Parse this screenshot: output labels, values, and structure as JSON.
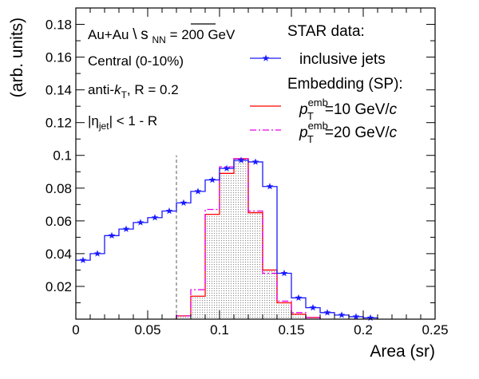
{
  "chart_data": {
    "type": "line",
    "title": "",
    "xlabel": "Area (sr)",
    "ylabel": "(arb. units)",
    "xlim": [
      0,
      0.25
    ],
    "ylim": [
      0,
      0.19
    ],
    "x_ticks": [
      "0",
      "0.05",
      "0.1",
      "0.15",
      "0.2",
      "0.25"
    ],
    "y_ticks": [
      "0.02",
      "0.04",
      "0.06",
      "0.08",
      "0.1",
      "0.12",
      "0.14",
      "0.16",
      "0.18"
    ],
    "annotations": {
      "system_prefix": "Au+Au ",
      "system_sub": "NN",
      "system_suffix": " = 200 GeV",
      "centrality": "Central (0-10%)",
      "algo_prefix": "anti-",
      "algo_k": "k",
      "algo_sub": "T",
      "algo_suffix": ", R = 0.2",
      "eta_sub": "jet",
      "eta_suffix": "| < 1 - R"
    },
    "legend": {
      "header1": "STAR data:",
      "header2": "Embedding (SP):",
      "series_label_prefix": "p",
      "series_label_sup": "emb",
      "series_label_sub": "T",
      "series_label_unit": " GeV/",
      "series_label_c": "c"
    },
    "cut_line_x": 0.07,
    "bin_width": 0.01,
    "series": [
      {
        "name": "inclusive jets",
        "color": "#1a1aff",
        "style": "solid-step-with-stars",
        "x": [
          0.005,
          0.015,
          0.025,
          0.035,
          0.045,
          0.055,
          0.065,
          0.075,
          0.085,
          0.095,
          0.105,
          0.115,
          0.125,
          0.135,
          0.145,
          0.155,
          0.165,
          0.175,
          0.185,
          0.195,
          0.205
        ],
        "values": [
          0.036,
          0.04,
          0.051,
          0.055,
          0.059,
          0.062,
          0.066,
          0.071,
          0.078,
          0.085,
          0.092,
          0.097,
          0.096,
          0.081,
          0.028,
          0.013,
          0.007,
          0.004,
          0.0025,
          0.0015,
          0.0008
        ]
      },
      {
        "name": "10",
        "color": "#ff0000",
        "style": "solid-step-filled",
        "x": [
          0.075,
          0.085,
          0.095,
          0.105,
          0.115,
          0.125,
          0.135,
          0.145,
          0.155,
          0.165
        ],
        "values": [
          0.002,
          0.014,
          0.064,
          0.089,
          0.098,
          0.065,
          0.03,
          0.01,
          0.003,
          0.001
        ]
      },
      {
        "name": "20",
        "color": "#e600e6",
        "style": "dashdot-step",
        "x": [
          0.075,
          0.085,
          0.095,
          0.105,
          0.115,
          0.125,
          0.135,
          0.145,
          0.155,
          0.165
        ],
        "values": [
          0.002,
          0.018,
          0.067,
          0.093,
          0.098,
          0.066,
          0.028,
          0.011,
          0.004,
          0.001
        ]
      }
    ]
  }
}
